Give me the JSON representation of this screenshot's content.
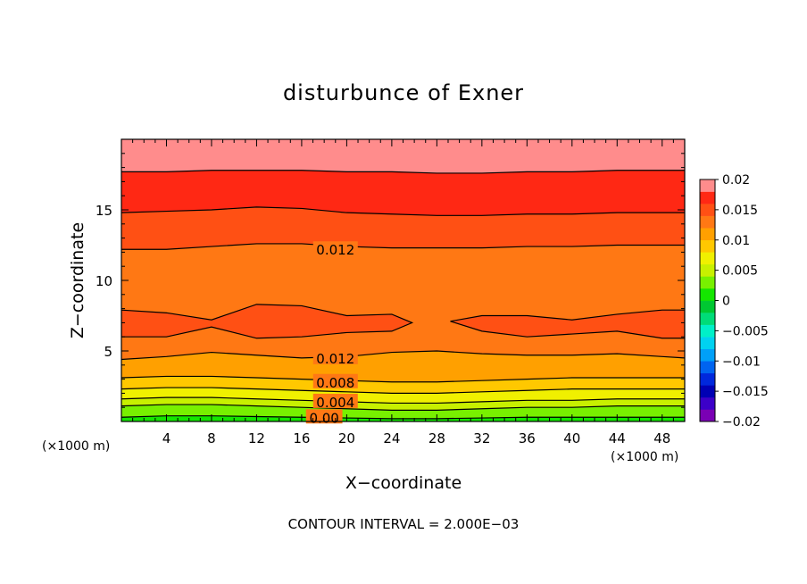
{
  "chart_data": {
    "type": "heatmap",
    "title": "disturbunce of Exner",
    "xlabel": "X−coordinate",
    "ylabel": "Z−coordinate",
    "x_unit_left": "(×1000 m)",
    "x_unit_right": "(×1000 m)",
    "footnote": "CONTOUR INTERVAL = 2.000E−03",
    "xlim": [
      0,
      50
    ],
    "ylim": [
      0,
      20
    ],
    "x_ticks": [
      "4",
      "8",
      "12",
      "16",
      "20",
      "24",
      "28",
      "32",
      "36",
      "40",
      "44",
      "48"
    ],
    "x_tick_values": [
      4,
      8,
      12,
      16,
      20,
      24,
      28,
      32,
      36,
      40,
      44,
      48
    ],
    "y_ticks": [
      "5",
      "10",
      "15"
    ],
    "y_tick_values": [
      5,
      10,
      15
    ],
    "colorbar": {
      "tick_labels": [
        "0.02",
        "0.015",
        "0.01",
        "0.005",
        "0",
        "−0.005",
        "−0.01",
        "−0.015",
        "−0.02"
      ],
      "tick_values": [
        0.02,
        0.015,
        0.01,
        0.005,
        0,
        -0.005,
        -0.01,
        -0.015,
        -0.02
      ],
      "range": [
        -0.02,
        0.02
      ],
      "levels": [
        -0.02,
        -0.018,
        -0.016,
        -0.014,
        -0.012,
        -0.01,
        -0.008,
        -0.006,
        -0.004,
        -0.002,
        0,
        0.002,
        0.004,
        0.006,
        0.008,
        0.01,
        0.012,
        0.014,
        0.016,
        0.018,
        0.02
      ],
      "colors": [
        "#7a00b4",
        "#3c00c8",
        "#0000b4",
        "#0028dc",
        "#0064f0",
        "#00a0f8",
        "#00d2f0",
        "#00f0c8",
        "#00dc78",
        "#00c832",
        "#14e600",
        "#78f000",
        "#c8f000",
        "#f0f000",
        "#ffc800",
        "#ffa000",
        "#ff7814",
        "#ff5014",
        "#ff2814",
        "#ff8c8c"
      ]
    },
    "bands": [
      {
        "level_low": 0.0,
        "level_high": 0.002,
        "z": [
          0.3,
          0.4,
          0.4,
          0.35,
          0.3,
          0.25,
          0.2,
          0.2,
          0.25,
          0.3,
          0.3,
          0.3,
          0.3,
          0.3
        ]
      },
      {
        "level_low": 0.002,
        "level_high": 0.004,
        "z": [
          1.1,
          1.2,
          1.2,
          1.1,
          1.0,
          0.9,
          0.8,
          0.8,
          0.9,
          1.0,
          1.0,
          1.1,
          1.1,
          1.1
        ]
      },
      {
        "level_low": 0.004,
        "level_high": 0.006,
        "z": [
          1.6,
          1.7,
          1.7,
          1.6,
          1.5,
          1.4,
          1.3,
          1.3,
          1.4,
          1.5,
          1.5,
          1.6,
          1.6,
          1.6
        ]
      },
      {
        "level_low": 0.006,
        "level_high": 0.008,
        "z": [
          2.3,
          2.4,
          2.4,
          2.3,
          2.2,
          2.1,
          2.0,
          2.0,
          2.1,
          2.2,
          2.3,
          2.3,
          2.3,
          2.3
        ]
      },
      {
        "level_low": 0.008,
        "level_high": 0.01,
        "z": [
          3.1,
          3.2,
          3.2,
          3.1,
          3.0,
          2.9,
          2.8,
          2.8,
          2.9,
          3.0,
          3.1,
          3.1,
          3.1,
          3.1
        ]
      },
      {
        "level_low": 0.01,
        "level_high": 0.012,
        "z": [
          4.4,
          4.6,
          4.9,
          4.7,
          4.5,
          4.6,
          4.9,
          5.0,
          4.8,
          4.7,
          4.7,
          4.8,
          4.6,
          4.5
        ]
      },
      {
        "level_low": 0.012,
        "level_high": 0.014,
        "z": [
          12.2,
          12.2,
          12.4,
          12.6,
          12.6,
          12.4,
          12.3,
          12.3,
          12.3,
          12.4,
          12.4,
          12.5,
          12.5,
          12.5
        ]
      },
      {
        "level_low": 0.014,
        "level_high": 0.016,
        "z": [
          14.8,
          14.9,
          15.0,
          15.2,
          15.1,
          14.8,
          14.7,
          14.6,
          14.6,
          14.7,
          14.7,
          14.8,
          14.8,
          14.8
        ]
      },
      {
        "level_low": 0.016,
        "level_high": 0.018,
        "z": [
          17.7,
          17.7,
          17.8,
          17.8,
          17.8,
          17.7,
          17.7,
          17.6,
          17.6,
          17.7,
          17.7,
          17.8,
          17.8,
          17.8
        ]
      },
      {
        "level_low": 0.018,
        "level_high": 0.02,
        "z": [
          20,
          20,
          20,
          20,
          20,
          20,
          20,
          20,
          20,
          20,
          20,
          20,
          20,
          20
        ]
      }
    ],
    "band_x": [
      0,
      4,
      8,
      12,
      16,
      20,
      24,
      28,
      32,
      36,
      40,
      44,
      48,
      50
    ],
    "max_regions": [
      {
        "level": 0.014,
        "x": [
          0,
          4,
          8,
          12,
          16,
          20,
          24,
          25.8,
          24,
          20,
          16,
          12,
          8,
          4,
          0
        ],
        "z": [
          7.9,
          7.7,
          7.2,
          8.3,
          8.2,
          7.5,
          7.6,
          7.0,
          6.4,
          6.3,
          6.0,
          5.9,
          6.7,
          6.0,
          6.0
        ]
      },
      {
        "level": 0.014,
        "x": [
          29.2,
          32,
          36,
          40,
          44,
          48,
          50,
          50,
          48,
          44,
          40,
          36,
          32,
          29.2
        ],
        "z": [
          7.1,
          7.5,
          7.5,
          7.2,
          7.6,
          7.9,
          7.9,
          5.9,
          5.9,
          6.4,
          6.2,
          6.0,
          6.4,
          7.1
        ]
      }
    ],
    "contour_labels": [
      {
        "text": "0.012",
        "x": 19,
        "z": 12.2
      },
      {
        "text": "0.012",
        "x": 19,
        "z": 4.5
      },
      {
        "text": "0.008",
        "x": 19,
        "z": 2.8
      },
      {
        "text": "0.004",
        "x": 19,
        "z": 1.4
      },
      {
        "text": "0.00",
        "x": 18,
        "z": 0.3
      }
    ]
  }
}
